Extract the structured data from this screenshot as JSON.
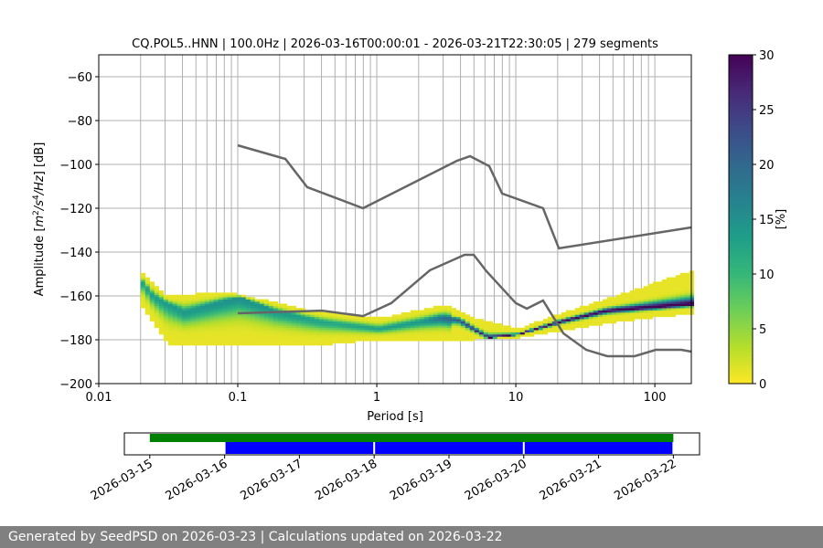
{
  "chart_data": {
    "type": "heatmap",
    "title": "CQ.POL5..HNN | 100.0Hz | 2026-03-16T00:00:01 - 2026-03-21T22:30:05 | 279 segments",
    "xlabel": "Period [s]",
    "ylabel_parts": [
      "Amplitude [",
      "m",
      "2",
      "/s",
      "4",
      "/Hz",
      "] [dB]"
    ],
    "x_scale": "log",
    "xlim": [
      0.01,
      183
    ],
    "ylim": [
      -200,
      -50
    ],
    "x_ticks": [
      0.01,
      0.1,
      1,
      10,
      100
    ],
    "x_tick_labels": [
      "0.01",
      "0.1",
      "1",
      "10",
      "100"
    ],
    "y_ticks": [
      -200,
      -180,
      -160,
      -140,
      -120,
      -100,
      -80,
      -60
    ],
    "y_tick_labels": [
      "−200",
      "−180",
      "−160",
      "−140",
      "−120",
      "−100",
      "−80",
      "−60"
    ],
    "grid": true,
    "psd_density": {
      "mode": [
        [
          0.02,
          -154
        ],
        [
          0.0237,
          -160
        ],
        [
          0.04,
          -167.5
        ],
        [
          0.074,
          -162.5
        ],
        [
          0.1,
          -160.4
        ],
        [
          0.18,
          -166.7
        ],
        [
          0.39,
          -171.7
        ],
        [
          1,
          -175
        ],
        [
          2.8,
          -170
        ],
        [
          3.8,
          -170.8
        ],
        [
          6,
          -179.2
        ],
        [
          10,
          -177.5
        ],
        [
          20,
          -171.7
        ],
        [
          43,
          -166.7
        ],
        [
          183,
          -163.7
        ]
      ],
      "upper_extent": [
        [
          0.02,
          -150
        ],
        [
          0.03,
          -160
        ],
        [
          0.08,
          -158
        ],
        [
          0.3,
          -166
        ],
        [
          1,
          -170
        ],
        [
          3,
          -164
        ],
        [
          5,
          -170
        ],
        [
          10,
          -175
        ],
        [
          20,
          -168
        ],
        [
          50,
          -160
        ],
        [
          183,
          -148
        ]
      ],
      "lower_extent": [
        [
          0.02,
          -165
        ],
        [
          0.03,
          -182
        ],
        [
          0.3,
          -183
        ],
        [
          1,
          -180
        ],
        [
          5,
          -180
        ],
        [
          10,
          -179
        ],
        [
          20,
          -176
        ],
        [
          50,
          -172
        ],
        [
          183,
          -168
        ]
      ],
      "peak_percent": [
        [
          0.02,
          12
        ],
        [
          0.1,
          14
        ],
        [
          0.5,
          11
        ],
        [
          2,
          13
        ],
        [
          5,
          25
        ],
        [
          6,
          30
        ],
        [
          183,
          30
        ]
      ]
    },
    "noise_models": [
      {
        "points": [
          [
            0.1,
            -91.3
          ],
          [
            0.22,
            -97.5
          ],
          [
            0.316,
            -110.4
          ],
          [
            0.796,
            -120
          ],
          [
            3.79,
            -98.3
          ],
          [
            4.69,
            -96.25
          ],
          [
            6.44,
            -100.8
          ],
          [
            7.97,
            -113.3
          ],
          [
            15.7,
            -120
          ],
          [
            20.4,
            -138.3
          ],
          [
            183,
            -128.75
          ]
        ]
      },
      {
        "points": [
          [
            0.1,
            -167.9
          ],
          [
            0.403,
            -166.7
          ],
          [
            0.796,
            -169.2
          ],
          [
            1.27,
            -163.3
          ],
          [
            2.41,
            -148.3
          ],
          [
            4.28,
            -141.25
          ],
          [
            4.98,
            -141.25
          ],
          [
            6.15,
            -148.75
          ],
          [
            10,
            -163.3
          ],
          [
            12,
            -165.8
          ],
          [
            15.7,
            -162.1
          ],
          [
            22,
            -177.1
          ],
          [
            32.1,
            -184.6
          ],
          [
            45.5,
            -187.5
          ],
          [
            71.6,
            -187.5
          ],
          [
            101.6,
            -184.6
          ],
          [
            155,
            -184.6
          ],
          [
            183,
            -185.4
          ]
        ]
      }
    ],
    "noise_model_color": "#666666",
    "colorbar": {
      "label": "[%]",
      "range": [
        0,
        30
      ],
      "ticks": [
        "0",
        "5",
        "10",
        "15",
        "20",
        "25",
        "30"
      ],
      "colormap": "viridis_r"
    },
    "timeline": {
      "date_ticks": [
        "2026-03-15",
        "2026-03-16",
        "2026-03-17",
        "2026-03-18",
        "2026-03-19",
        "2026-03-20",
        "2026-03-21",
        "2026-03-22"
      ],
      "xlim_days": [
        14.66,
        22.35
      ],
      "data_span": {
        "start_day": 15.0,
        "end_day": 22.0,
        "color": "#008000"
      },
      "segments": [
        {
          "start_day": 16.0,
          "end_day": 18.0
        },
        {
          "start_day": 18.0,
          "end_day": 20.0
        },
        {
          "start_day": 20.0,
          "end_day": 22.0
        }
      ],
      "segment_color": "#0000ff"
    }
  },
  "footer": {
    "text": "Generated by SeedPSD on 2026-03-23 | Calculations updated on 2026-03-22"
  }
}
